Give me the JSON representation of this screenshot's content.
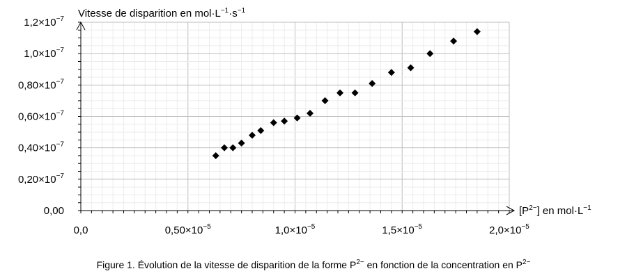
{
  "chart_data": {
    "type": "scatter",
    "title": "",
    "ylabel": {
      "text": "Vitesse de disparition en mol·L",
      "sup1": "−1",
      "mid": "·s",
      "sup2": "−1"
    },
    "xlabel": {
      "pre": "[P",
      "sup": "2−",
      "post": "] en mol·L",
      "sup2": "−1"
    },
    "caption": {
      "t1": "Figure 1. Évolution de la vitesse de disparition de la forme P",
      "s1": "2−",
      "t2": " en fonction de la concentration en P",
      "s2": "2−"
    },
    "xlim": [
      0,
      2e-05
    ],
    "ylim": [
      0,
      1.2e-07
    ],
    "grid": true,
    "x_ticks": [
      {
        "value": 0,
        "mant": "0,0",
        "exp": ""
      },
      {
        "value": 5e-06,
        "mant": "0,50×10",
        "exp": "−5"
      },
      {
        "value": 1e-05,
        "mant": "1,0×10",
        "exp": "−5"
      },
      {
        "value": 1.5e-05,
        "mant": "1,5×10",
        "exp": "−5"
      },
      {
        "value": 2e-05,
        "mant": "2,0×10",
        "exp": "−5"
      }
    ],
    "y_ticks": [
      {
        "value": 0,
        "mant": "0,00",
        "exp": ""
      },
      {
        "value": 2e-08,
        "mant": "0,20×10",
        "exp": "−7"
      },
      {
        "value": 4e-08,
        "mant": "0,40×10",
        "exp": "−7"
      },
      {
        "value": 6e-08,
        "mant": "0,60×10",
        "exp": "−7"
      },
      {
        "value": 8e-08,
        "mant": "0,80×10",
        "exp": "−7"
      },
      {
        "value": 1e-07,
        "mant": "1,0×10",
        "exp": "−7"
      },
      {
        "value": 1.2e-07,
        "mant": "1,2×10",
        "exp": "−7"
      }
    ],
    "marker_color": "#000000",
    "grid_color": "#c8c8c8",
    "series": [
      {
        "marker": "diamond",
        "points": [
          [
            6.3e-06,
            3.5e-08
          ],
          [
            6.7e-06,
            4e-08
          ],
          [
            7.1e-06,
            4e-08
          ],
          [
            7.5e-06,
            4.3e-08
          ],
          [
            8e-06,
            4.8e-08
          ],
          [
            8.4e-06,
            5.1e-08
          ],
          [
            9e-06,
            5.6e-08
          ],
          [
            9.5e-06,
            5.7e-08
          ],
          [
            1.01e-05,
            5.9e-08
          ],
          [
            1.07e-05,
            6.2e-08
          ],
          [
            1.14e-05,
            7e-08
          ],
          [
            1.21e-05,
            7.5e-08
          ],
          [
            1.28e-05,
            7.5e-08
          ],
          [
            1.36e-05,
            8.1e-08
          ],
          [
            1.45e-05,
            8.8e-08
          ],
          [
            1.54e-05,
            9.1e-08
          ],
          [
            1.63e-05,
            1e-07
          ],
          [
            1.74e-05,
            1.08e-07
          ],
          [
            1.85e-05,
            1.14e-07
          ]
        ]
      }
    ]
  }
}
